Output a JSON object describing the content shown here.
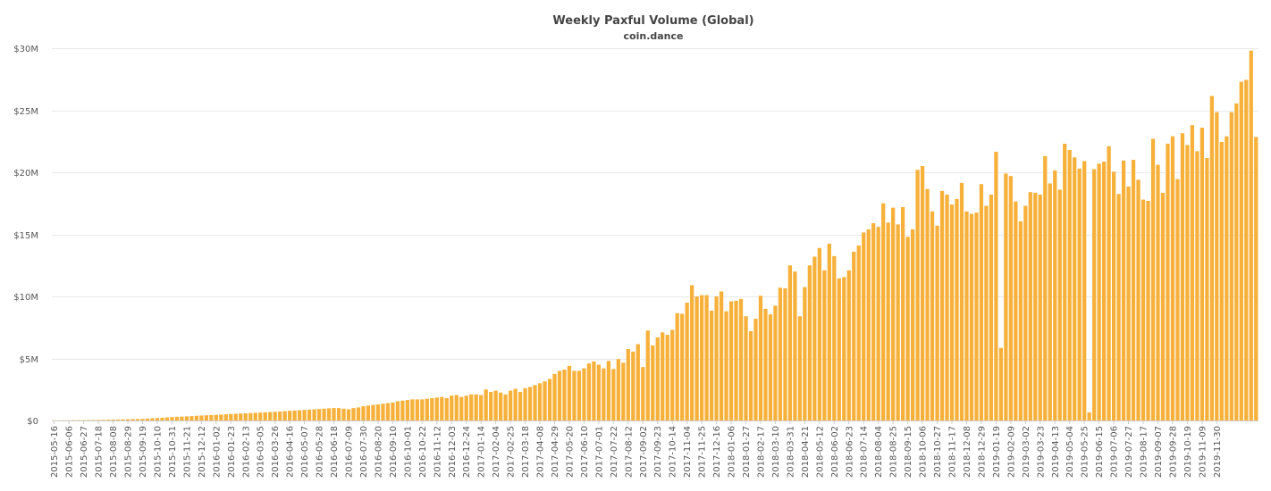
{
  "chart_data": {
    "type": "bar",
    "title": "Weekly Paxful Volume (Global)",
    "subtitle": "coin.dance",
    "xlabel": "",
    "ylabel": "",
    "ylim": [
      0,
      30000000
    ],
    "grid": true,
    "legend": "none",
    "bar_color": "#f7b13b",
    "y_tick_values": [
      0,
      5000000,
      10000000,
      15000000,
      20000000,
      25000000,
      30000000
    ],
    "y_tick_labels": [
      "$0",
      "$5M",
      "$10M",
      "$15M",
      "$20M",
      "$25M",
      "$30M"
    ],
    "x_tick_labels": [
      "2015-05-16",
      "2015-06-06",
      "2015-06-27",
      "2015-07-18",
      "2015-08-08",
      "2015-08-29",
      "2015-09-19",
      "2015-10-10",
      "2015-10-31",
      "2015-11-21",
      "2015-12-12",
      "2016-01-02",
      "2016-01-23",
      "2016-02-13",
      "2016-03-05",
      "2016-03-26",
      "2016-04-16",
      "2016-05-07",
      "2016-05-28",
      "2016-06-18",
      "2016-07-09",
      "2016-07-30",
      "2016-08-20",
      "2016-09-10",
      "2016-10-01",
      "2016-10-22",
      "2016-11-12",
      "2016-12-03",
      "2016-12-24",
      "2017-01-14",
      "2017-02-04",
      "2017-02-25",
      "2017-03-18",
      "2017-04-08",
      "2017-04-29",
      "2017-05-20",
      "2017-06-10",
      "2017-07-01",
      "2017-07-22",
      "2017-08-12",
      "2017-09-02",
      "2017-09-23",
      "2017-10-14",
      "2017-11-04",
      "2017-11-25",
      "2017-12-16",
      "2018-01-06",
      "2018-01-27",
      "2018-02-17",
      "2018-03-10",
      "2018-03-31",
      "2018-04-21",
      "2018-05-12",
      "2018-06-02",
      "2018-06-23",
      "2018-07-14",
      "2018-08-04",
      "2018-08-25",
      "2018-09-15",
      "2018-10-06",
      "2018-10-27",
      "2018-11-17",
      "2018-12-08",
      "2018-12-29",
      "2019-01-19",
      "2019-02-09",
      "2019-03-02",
      "2019-03-23",
      "2019-04-13",
      "2019-05-04",
      "2019-05-25",
      "2019-06-15",
      "2019-07-06",
      "2019-07-27",
      "2019-08-17",
      "2019-09-07",
      "2019-09-28",
      "2019-10-19",
      "2019-11-09",
      "2019-11-30"
    ],
    "values": [
      10000,
      12000,
      15000,
      18000,
      22000,
      25000,
      30000,
      35000,
      40000,
      45000,
      50000,
      60000,
      70000,
      80000,
      90000,
      100000,
      110000,
      120000,
      130000,
      150000,
      180000,
      200000,
      220000,
      250000,
      280000,
      300000,
      310000,
      330000,
      350000,
      380000,
      400000,
      420000,
      440000,
      460000,
      480000,
      500000,
      520000,
      540000,
      560000,
      580000,
      600000,
      620000,
      640000,
      660000,
      680000,
      700000,
      720000,
      750000,
      780000,
      800000,
      820000,
      850000,
      880000,
      900000,
      920000,
      950000,
      980000,
      1000000,
      1000000,
      950000,
      900000,
      1000000,
      1050000,
      1150000,
      1200000,
      1250000,
      1300000,
      1350000,
      1400000,
      1450000,
      1550000,
      1600000,
      1650000,
      1700000,
      1700000,
      1700000,
      1750000,
      1800000,
      1850000,
      1900000,
      1800000,
      2000000,
      2050000,
      1900000,
      2000000,
      2100000,
      2100000,
      2050000,
      2500000,
      2300000,
      2400000,
      2250000,
      2100000,
      2400000,
      2550000,
      2300000,
      2600000,
      2700000,
      2850000,
      3000000,
      3150000,
      3350000,
      3750000,
      4000000,
      4100000,
      4400000,
      4000000,
      4000000,
      4200000,
      4600000,
      4750000,
      4500000,
      4200000,
      4800000,
      4150000,
      4950000,
      4650000,
      5750000,
      5550000,
      6150000,
      4300000,
      7250000,
      6050000,
      6700000,
      7100000,
      6900000,
      7300000,
      8650000,
      8600000,
      9500000,
      10900000,
      10000000,
      10100000,
      10100000,
      8850000,
      10000000,
      10400000,
      8800000,
      9600000,
      9650000,
      9800000,
      8400000,
      7200000,
      8200000,
      10050000,
      9000000,
      8550000,
      9250000,
      10700000,
      10650000,
      12500000,
      12000000,
      8400000,
      10750000,
      12500000,
      13200000,
      13900000,
      12100000,
      14250000,
      13250000,
      11450000,
      11550000,
      12100000,
      13600000,
      14100000,
      15150000,
      15400000,
      15900000,
      15600000,
      17500000,
      15950000,
      17150000,
      15800000,
      17200000,
      14800000,
      15400000,
      20200000,
      20500000,
      18650000,
      16850000,
      15700000,
      18500000,
      18200000,
      17400000,
      17850000,
      19150000,
      16850000,
      16650000,
      16750000,
      19050000,
      17300000,
      18200000,
      21650000,
      5850000,
      19900000,
      19700000,
      17650000,
      16050000,
      17300000,
      18400000,
      18350000,
      18200000,
      21300000,
      19100000,
      20150000,
      18600000,
      22300000,
      21800000,
      21200000,
      20300000,
      20900000,
      650000,
      20250000,
      20700000,
      20850000,
      22100000,
      20050000,
      18250000,
      20950000,
      18850000,
      21000000,
      19400000,
      17800000,
      17700000,
      22700000,
      20600000,
      18350000,
      22300000,
      22900000,
      19450000,
      23150000,
      22200000,
      23800000,
      21700000,
      23600000,
      21150000,
      26150000,
      24850000,
      22450000,
      22900000,
      24850000,
      25550000,
      27300000,
      27450000,
      29800000,
      22850000
    ]
  }
}
